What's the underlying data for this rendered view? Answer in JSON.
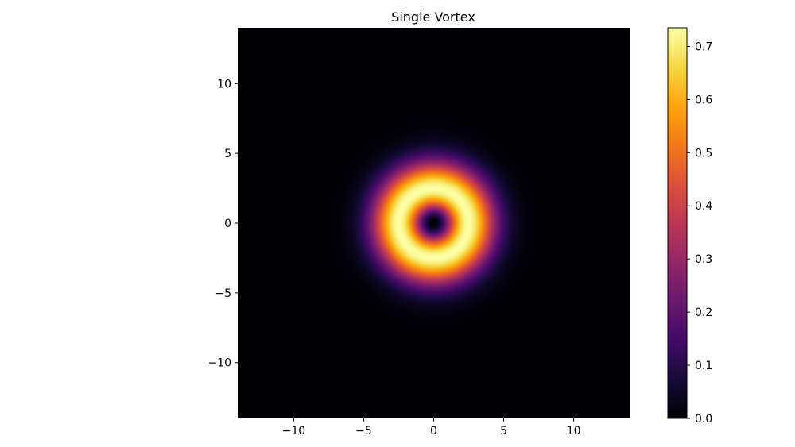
{
  "chart_data": {
    "type": "heatmap",
    "title": "Single Vortex",
    "xlabel": "",
    "ylabel": "",
    "xlim": [
      -14,
      14
    ],
    "ylim": [
      -14,
      14
    ],
    "x_ticks": [
      -10,
      -5,
      0,
      5,
      10
    ],
    "y_ticks": [
      -10,
      -5,
      0,
      5,
      10
    ],
    "x_tick_labels": [
      "−10",
      "−5",
      "0",
      "5",
      "10"
    ],
    "y_tick_labels": [
      "−10",
      "−5",
      "0",
      "5",
      "10"
    ],
    "field": {
      "description_of_values": "density |psi|^2 of a single vortex ring centered at origin",
      "center": [
        0,
        0
      ],
      "peak_radius": 2.5,
      "peak_value": 0.735,
      "core_value": 0.0,
      "edge_radius": 7.0
    },
    "colormap": "inferno",
    "colorbar": {
      "vmin": 0.0,
      "vmax": 0.735,
      "ticks": [
        0.0,
        0.1,
        0.2,
        0.3,
        0.4,
        0.5,
        0.6,
        0.7
      ],
      "tick_labels": [
        "0.0",
        "0.1",
        "0.2",
        "0.3",
        "0.4",
        "0.5",
        "0.6",
        "0.7"
      ]
    },
    "grid": false
  }
}
